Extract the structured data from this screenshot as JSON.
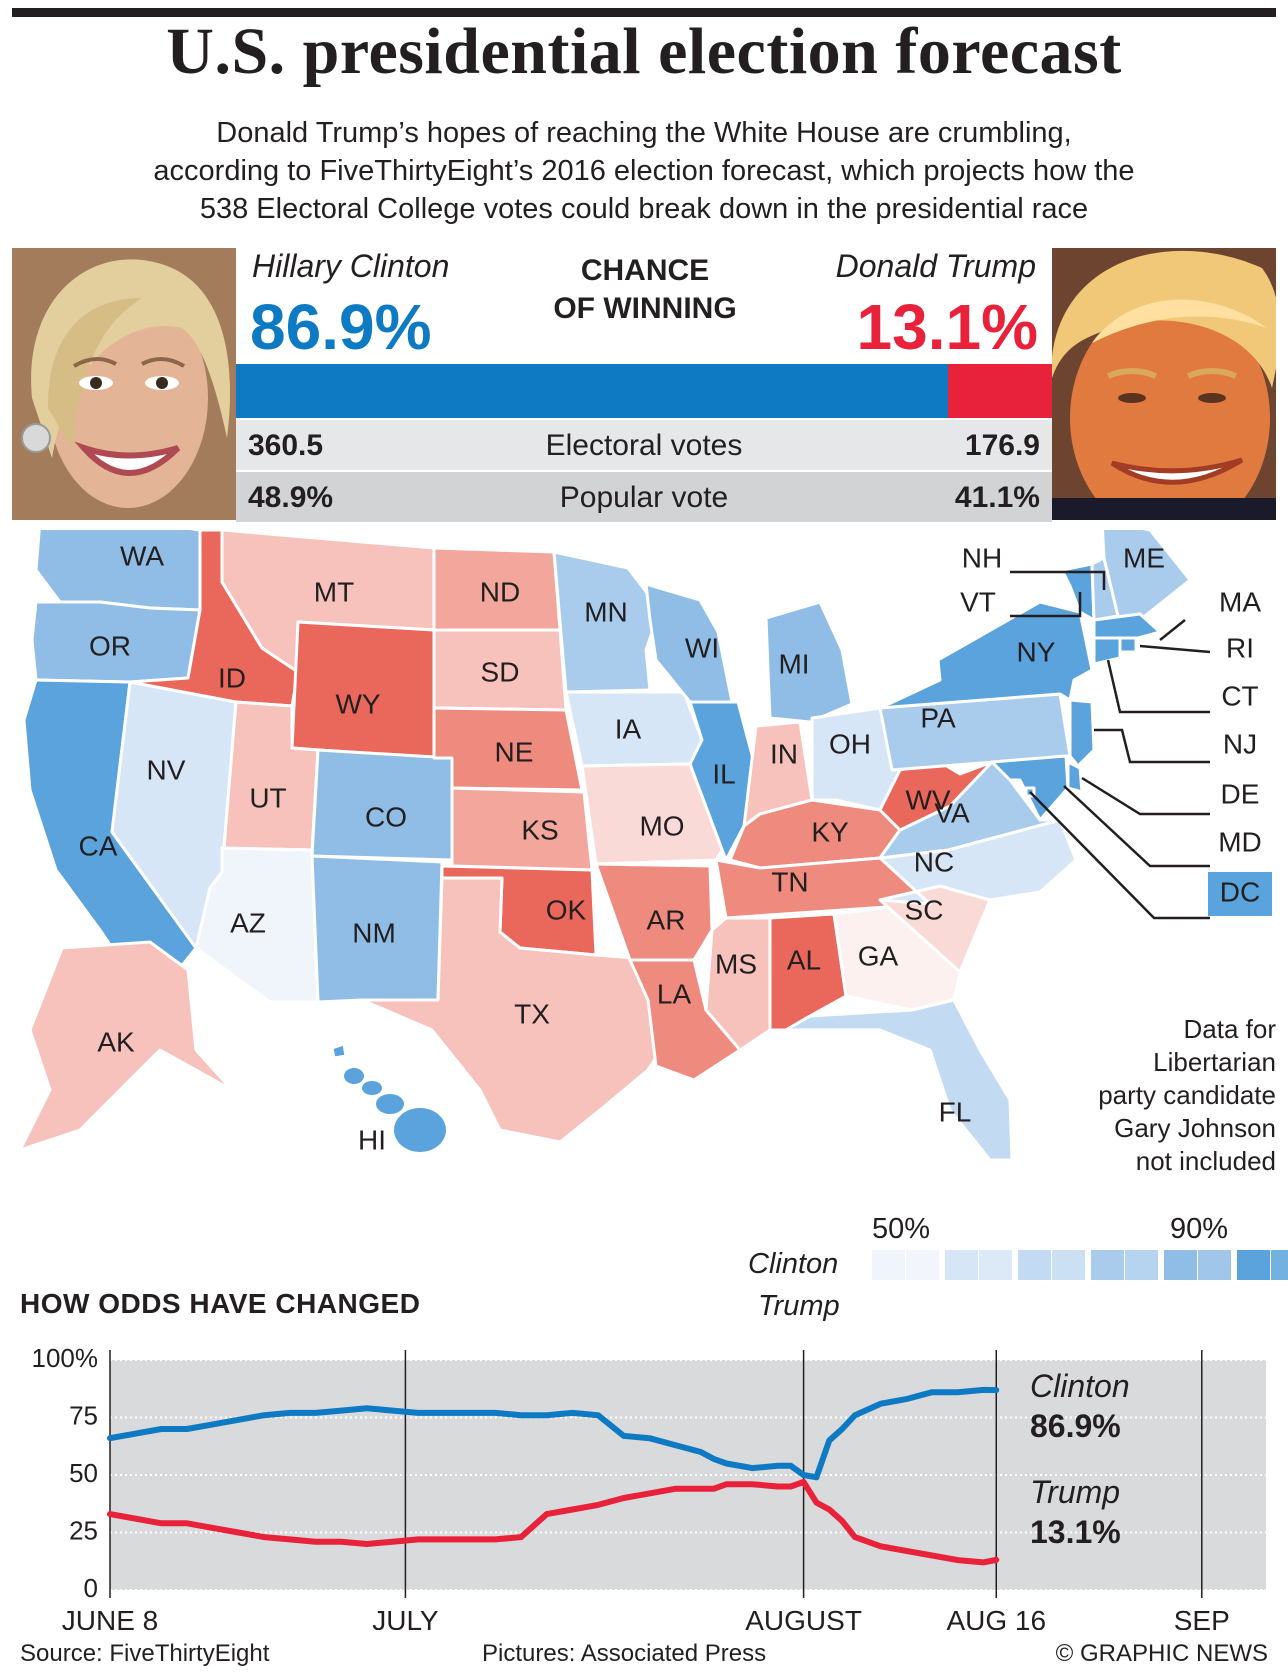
{
  "header": {
    "title": "U.S. presidential election forecast",
    "subtitle_lines": [
      "Donald Trump’s hopes of reaching the White House are crumbling,",
      "according to FiveThirtyEight’s 2016 election forecast, which projects how the",
      "538 Electoral College votes could break down in the presidential race"
    ]
  },
  "candidates": {
    "clinton": {
      "name": "Hillary Clinton",
      "chance": "86.9%",
      "chance_value": 86.9,
      "electoral": "360.5",
      "popular": "48.9%",
      "color": "#0e7ac4"
    },
    "trump": {
      "name": "Donald Trump",
      "chance": "13.1%",
      "chance_value": 13.1,
      "electoral": "176.9",
      "popular": "41.1%",
      "color": "#e8223a"
    }
  },
  "chance_label": [
    "CHANCE",
    "OF WINNING"
  ],
  "rows": {
    "electoral_label": "Electoral votes",
    "popular_label": "Popular vote"
  },
  "map": {
    "states": [
      {
        "abbr": "WA",
        "party": "Clinton",
        "level": 5
      },
      {
        "abbr": "OR",
        "party": "Clinton",
        "level": 5
      },
      {
        "abbr": "CA",
        "party": "Clinton",
        "level": 6
      },
      {
        "abbr": "NV",
        "party": "Clinton",
        "level": 2
      },
      {
        "abbr": "ID",
        "party": "Trump",
        "level": 6
      },
      {
        "abbr": "MT",
        "party": "Trump",
        "level": 3
      },
      {
        "abbr": "WY",
        "party": "Trump",
        "level": 6
      },
      {
        "abbr": "UT",
        "party": "Trump",
        "level": 3
      },
      {
        "abbr": "AZ",
        "party": "Clinton",
        "level": 1
      },
      {
        "abbr": "CO",
        "party": "Clinton",
        "level": 5
      },
      {
        "abbr": "NM",
        "party": "Clinton",
        "level": 5
      },
      {
        "abbr": "ND",
        "party": "Trump",
        "level": 4
      },
      {
        "abbr": "SD",
        "party": "Trump",
        "level": 3
      },
      {
        "abbr": "NE",
        "party": "Trump",
        "level": 5
      },
      {
        "abbr": "KS",
        "party": "Trump",
        "level": 4
      },
      {
        "abbr": "OK",
        "party": "Trump",
        "level": 6
      },
      {
        "abbr": "TX",
        "party": "Trump",
        "level": 3
      },
      {
        "abbr": "MN",
        "party": "Clinton",
        "level": 4
      },
      {
        "abbr": "IA",
        "party": "Clinton",
        "level": 2
      },
      {
        "abbr": "MO",
        "party": "Trump",
        "level": 2
      },
      {
        "abbr": "AR",
        "party": "Trump",
        "level": 5
      },
      {
        "abbr": "LA",
        "party": "Trump",
        "level": 5
      },
      {
        "abbr": "WI",
        "party": "Clinton",
        "level": 5
      },
      {
        "abbr": "IL",
        "party": "Clinton",
        "level": 6
      },
      {
        "abbr": "MI",
        "party": "Clinton",
        "level": 5
      },
      {
        "abbr": "IN",
        "party": "Trump",
        "level": 3
      },
      {
        "abbr": "OH",
        "party": "Clinton",
        "level": 2
      },
      {
        "abbr": "KY",
        "party": "Trump",
        "level": 5
      },
      {
        "abbr": "TN",
        "party": "Trump",
        "level": 5
      },
      {
        "abbr": "MS",
        "party": "Trump",
        "level": 3
      },
      {
        "abbr": "AL",
        "party": "Trump",
        "level": 6
      },
      {
        "abbr": "GA",
        "party": "Trump",
        "level": 1
      },
      {
        "abbr": "FL",
        "party": "Clinton",
        "level": 3
      },
      {
        "abbr": "SC",
        "party": "Trump",
        "level": 2
      },
      {
        "abbr": "NC",
        "party": "Clinton",
        "level": 2
      },
      {
        "abbr": "VA",
        "party": "Clinton",
        "level": 4
      },
      {
        "abbr": "WV",
        "party": "Trump",
        "level": 6
      },
      {
        "abbr": "PA",
        "party": "Clinton",
        "level": 4
      },
      {
        "abbr": "NY",
        "party": "Clinton",
        "level": 6
      },
      {
        "abbr": "VT",
        "party": "Clinton",
        "level": 6
      },
      {
        "abbr": "NH",
        "party": "Clinton",
        "level": 4
      },
      {
        "abbr": "ME",
        "party": "Clinton",
        "level": 4
      },
      {
        "abbr": "MA",
        "party": "Clinton",
        "level": 6
      },
      {
        "abbr": "RI",
        "party": "Clinton",
        "level": 6
      },
      {
        "abbr": "CT",
        "party": "Clinton",
        "level": 6
      },
      {
        "abbr": "NJ",
        "party": "Clinton",
        "level": 6
      },
      {
        "abbr": "DE",
        "party": "Clinton",
        "level": 6
      },
      {
        "abbr": "MD",
        "party": "Clinton",
        "level": 6
      },
      {
        "abbr": "DC",
        "party": "Clinton",
        "level": 6
      },
      {
        "abbr": "AK",
        "party": "Trump",
        "level": 3
      },
      {
        "abbr": "HI",
        "party": "Clinton",
        "level": 6
      }
    ],
    "legend": {
      "low": "50%",
      "high": "90%",
      "rows": [
        "Clinton",
        "Trump"
      ],
      "clinton_colors": [
        "#f0f5fc",
        "#d6e6f6",
        "#c3dbf2",
        "#a9cbec",
        "#8fbde6",
        "#5aa3dc"
      ],
      "trump_colors": [
        "#fdf1f0",
        "#fadad6",
        "#f6c2bb",
        "#f2a69c",
        "#ee8a7e",
        "#e9685b"
      ]
    },
    "note": [
      "Data for",
      "Libertarian",
      "party candidate",
      "Gary Johnson",
      "not included"
    ]
  },
  "odds": {
    "title": "HOW ODDS HAVE CHANGED",
    "end_labels": {
      "clinton_name": "Clinton",
      "clinton_value": "86.9%",
      "trump_name": "Trump",
      "trump_value": "13.1%"
    }
  },
  "chart_data": {
    "type": "line",
    "title": "HOW ODDS HAVE CHANGED",
    "xlabel": "",
    "ylabel": "",
    "y_ticks": [
      "100%",
      "75",
      "50",
      "25",
      "0"
    ],
    "ylim": [
      0,
      100
    ],
    "x_ticks": [
      "JUNE 8",
      "JULY",
      "AUGUST",
      "AUG 16",
      "SEP"
    ],
    "x_tick_days": [
      0,
      23,
      54,
      69,
      85
    ],
    "xlim": [
      0,
      90
    ],
    "grid": true,
    "series": [
      {
        "name": "Clinton",
        "color": "#0e7ac4",
        "days": [
          0,
          2,
          4,
          6,
          8,
          10,
          12,
          14,
          16,
          18,
          20,
          22,
          24,
          26,
          28,
          30,
          32,
          34,
          36,
          38,
          40,
          42,
          44,
          46,
          47,
          48,
          50,
          52,
          53,
          54,
          55,
          56,
          57,
          58,
          60,
          62,
          64,
          66,
          68,
          69
        ],
        "values": [
          66,
          68,
          70,
          70,
          72,
          74,
          76,
          77,
          77,
          78,
          79,
          78,
          77,
          77,
          77,
          77,
          76,
          76,
          77,
          76,
          67,
          66,
          63,
          60,
          57,
          55,
          53,
          54,
          54,
          50,
          49,
          65,
          70,
          76,
          81,
          83,
          86,
          86,
          87,
          86.9
        ]
      },
      {
        "name": "Trump",
        "color": "#e8223a",
        "days": [
          0,
          2,
          4,
          6,
          8,
          10,
          12,
          14,
          16,
          18,
          20,
          22,
          24,
          26,
          28,
          30,
          32,
          34,
          36,
          38,
          40,
          42,
          44,
          46,
          47,
          48,
          50,
          52,
          53,
          54,
          55,
          56,
          57,
          58,
          60,
          62,
          64,
          66,
          68,
          69
        ],
        "values": [
          33,
          31,
          29,
          29,
          27,
          25,
          23,
          22,
          21,
          21,
          20,
          21,
          22,
          22,
          22,
          22,
          23,
          33,
          35,
          37,
          40,
          42,
          44,
          44,
          44,
          46,
          46,
          45,
          45,
          47,
          38,
          35,
          30,
          23,
          19,
          17,
          15,
          13,
          12,
          13.1
        ]
      }
    ]
  },
  "footer": {
    "source": "Source: FiveThirtyEight",
    "pictures": "Pictures: Associated Press",
    "copyright": "© GRAPHIC NEWS"
  }
}
